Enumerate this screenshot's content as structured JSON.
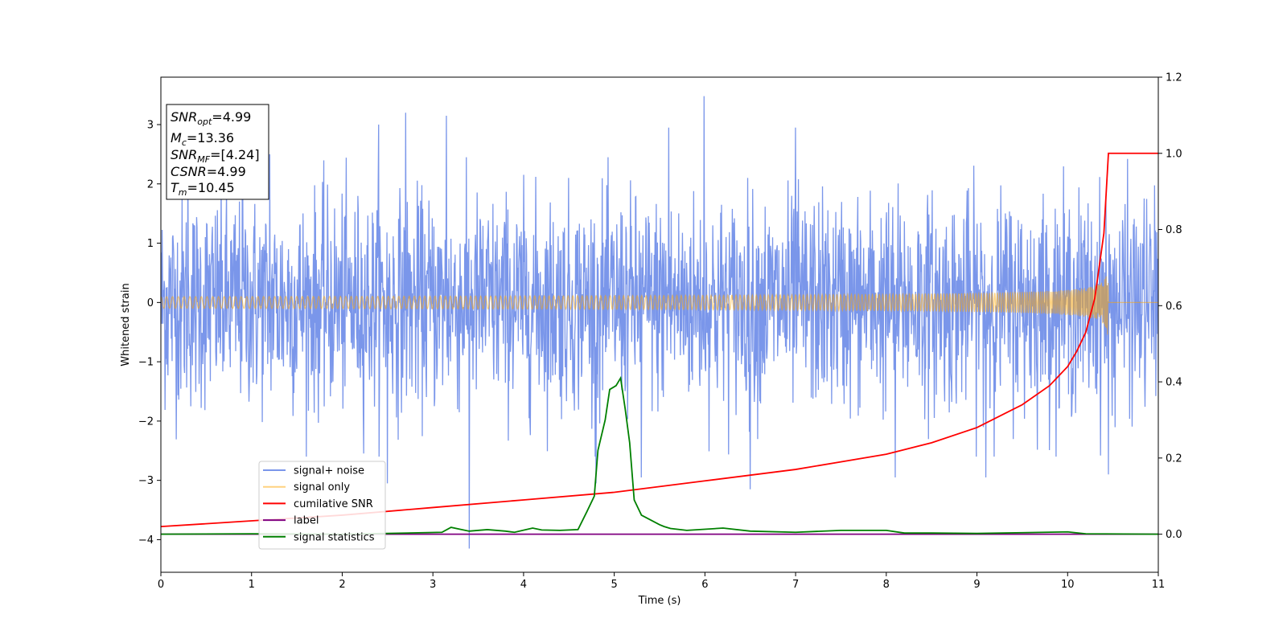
{
  "chart_data": {
    "type": "line",
    "xlabel": "Time (s)",
    "ylabel": "Whitened strain",
    "xlim": [
      0,
      11
    ],
    "ylim": [
      -4.55,
      3.8
    ],
    "y2lim": [
      -0.1,
      1.2
    ],
    "xticks": [
      0,
      1,
      2,
      3,
      4,
      5,
      6,
      7,
      8,
      9,
      10,
      11
    ],
    "yticks": [
      -4,
      -3,
      -2,
      -1,
      0,
      1,
      2,
      3
    ],
    "y2ticks": [
      0.0,
      0.2,
      0.4,
      0.6,
      0.8,
      1.0,
      1.2
    ],
    "legend_position": "lower-left",
    "info_box": {
      "snr_opt": {
        "main": "SNR",
        "sub": "opt",
        "rest": "=4.99"
      },
      "mc": {
        "main": "M",
        "sub": "c",
        "rest": "=13.36"
      },
      "snr_mf": {
        "main": "SNR",
        "sub": "MF",
        "rest": "=[4.24]"
      },
      "csnr": {
        "main": "CSNR",
        "rest": "=4.99"
      },
      "tm": {
        "main": "T",
        "sub": "m",
        "rest": "=10.45"
      }
    },
    "series": [
      {
        "name": "signal+ noise",
        "color": "#4169e1",
        "axis": "left",
        "kind": "noise",
        "typical_amplitude": 1.6,
        "spikes": [
          {
            "x": 0.3,
            "y": 2.4
          },
          {
            "x": 0.9,
            "y": 2.6
          },
          {
            "x": 1.2,
            "y": 2.5
          },
          {
            "x": 2.4,
            "y": 3.0
          },
          {
            "x": 2.7,
            "y": 3.2
          },
          {
            "x": 3.15,
            "y": 3.15
          },
          {
            "x": 5.6,
            "y": 2.95
          },
          {
            "x": 5.99,
            "y": 3.48
          },
          {
            "x": 7.0,
            "y": 2.95
          },
          {
            "x": 3.4,
            "y": -4.15
          },
          {
            "x": 2.5,
            "y": -3.05
          },
          {
            "x": 4.8,
            "y": -3.05
          },
          {
            "x": 5.3,
            "y": -2.95
          },
          {
            "x": 6.5,
            "y": -3.15
          },
          {
            "x": 8.1,
            "y": -2.95
          },
          {
            "x": 9.1,
            "y": -2.95
          },
          {
            "x": 10.45,
            "y": -2.9
          }
        ]
      },
      {
        "name": "signal only",
        "color": "#ffa500",
        "axis": "left",
        "kind": "chirp",
        "merger_time": 10.45,
        "peak_amplitude": 0.7
      },
      {
        "name": "cumilative SNR",
        "color": "#ff0000",
        "axis": "right",
        "points": [
          [
            0,
            0.02
          ],
          [
            1,
            0.035
          ],
          [
            2,
            0.05
          ],
          [
            3,
            0.07
          ],
          [
            4,
            0.09
          ],
          [
            5,
            0.11
          ],
          [
            6,
            0.14
          ],
          [
            7,
            0.17
          ],
          [
            7.5,
            0.19
          ],
          [
            8,
            0.21
          ],
          [
            8.5,
            0.24
          ],
          [
            9,
            0.28
          ],
          [
            9.5,
            0.34
          ],
          [
            9.8,
            0.39
          ],
          [
            10,
            0.44
          ],
          [
            10.1,
            0.48
          ],
          [
            10.2,
            0.53
          ],
          [
            10.3,
            0.62
          ],
          [
            10.4,
            0.79
          ],
          [
            10.45,
            1.0
          ],
          [
            11,
            1.0
          ]
        ]
      },
      {
        "name": "label",
        "color": "#800080",
        "axis": "right",
        "points": [
          [
            0,
            0
          ],
          [
            11,
            0
          ]
        ]
      },
      {
        "name": "signal statistics",
        "color": "#008000",
        "axis": "right",
        "points": [
          [
            0,
            0
          ],
          [
            1,
            0.001
          ],
          [
            2,
            0
          ],
          [
            2.5,
            0.002
          ],
          [
            3.1,
            0.005
          ],
          [
            3.2,
            0.018
          ],
          [
            3.3,
            0.013
          ],
          [
            3.4,
            0.008
          ],
          [
            3.6,
            0.012
          ],
          [
            3.8,
            0.008
          ],
          [
            3.9,
            0.005
          ],
          [
            4.1,
            0.016
          ],
          [
            4.2,
            0.011
          ],
          [
            4.4,
            0.01
          ],
          [
            4.6,
            0.012
          ],
          [
            4.7,
            0.06
          ],
          [
            4.78,
            0.1
          ],
          [
            4.82,
            0.22
          ],
          [
            4.9,
            0.3
          ],
          [
            4.95,
            0.38
          ],
          [
            5.02,
            0.39
          ],
          [
            5.07,
            0.41
          ],
          [
            5.12,
            0.33
          ],
          [
            5.17,
            0.24
          ],
          [
            5.22,
            0.09
          ],
          [
            5.3,
            0.05
          ],
          [
            5.5,
            0.025
          ],
          [
            5.55,
            0.02
          ],
          [
            5.62,
            0.015
          ],
          [
            5.8,
            0.01
          ],
          [
            6.2,
            0.016
          ],
          [
            6.5,
            0.008
          ],
          [
            7,
            0.005
          ],
          [
            7.5,
            0.01
          ],
          [
            8,
            0.01
          ],
          [
            8.2,
            0.003
          ],
          [
            8.5,
            0.003
          ],
          [
            9,
            0.002
          ],
          [
            9.5,
            0.004
          ],
          [
            10,
            0.006
          ],
          [
            10.2,
            0.001
          ],
          [
            11,
            0
          ]
        ]
      }
    ]
  }
}
